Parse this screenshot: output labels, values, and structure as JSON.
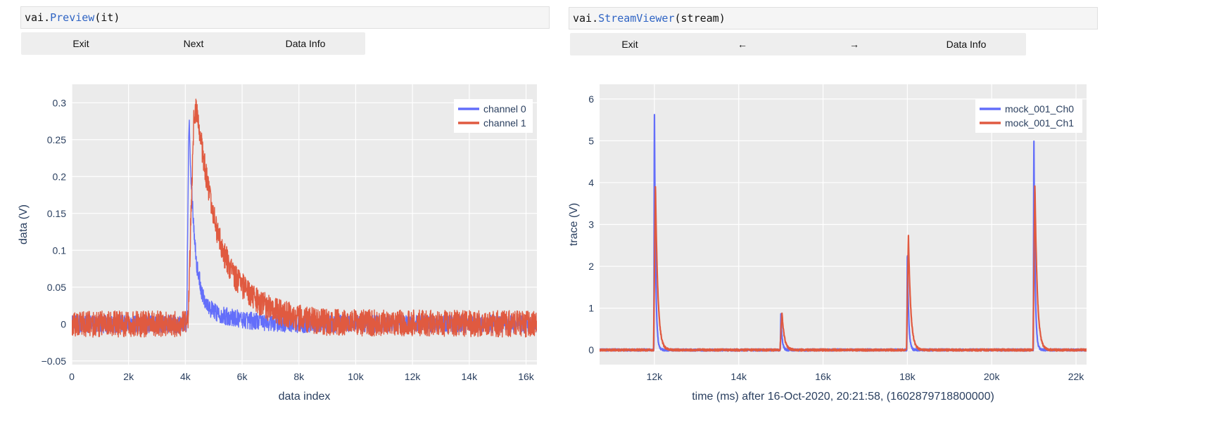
{
  "left_panel": {
    "code": {
      "prefix": "vai.",
      "fn": "Preview",
      "args": "(it)"
    },
    "buttons": [
      "Exit",
      "Next",
      "Data Info"
    ]
  },
  "right_panel": {
    "code": {
      "prefix": "vai.",
      "fn": "StreamViewer",
      "args": "(stream)"
    },
    "buttons": [
      "Exit",
      "←",
      "→",
      "Data Info"
    ]
  },
  "colors": {
    "channel0": "#636efa",
    "channel1": "#e05a40",
    "plot_bg": "#ebebeb",
    "grid": "#ffffff"
  },
  "chart_data": [
    {
      "type": "line",
      "xlabel": "data index",
      "ylabel": "data (V)",
      "xlim": [
        0,
        16384
      ],
      "ylim": [
        -0.055,
        0.325
      ],
      "x_ticks": [
        0,
        2000,
        4000,
        6000,
        8000,
        10000,
        12000,
        14000,
        16000
      ],
      "x_tick_labels": [
        "0",
        "2k",
        "4k",
        "6k",
        "8k",
        "10k",
        "12k",
        "14k",
        "16k"
      ],
      "y_ticks": [
        -0.05,
        0,
        0.05,
        0.1,
        0.15,
        0.2,
        0.25,
        0.3
      ],
      "y_tick_labels": [
        "−0.05",
        "0",
        "0.05",
        "0.1",
        "0.15",
        "0.2",
        "0.25",
        "0.3"
      ],
      "legend": "top-right",
      "series": [
        {
          "name": "channel 0",
          "x": [
            0,
            4050,
            4100,
            4130,
            4200,
            4300,
            4400,
            4600,
            4900,
            5300,
            6000,
            7000,
            8000,
            16384
          ],
          "values": [
            0,
            0,
            0.2,
            0.285,
            0.2,
            0.13,
            0.08,
            0.04,
            0.02,
            0.012,
            0.006,
            0.002,
            0,
            0
          ]
        },
        {
          "name": "channel 1",
          "x": [
            0,
            4100,
            4200,
            4300,
            4400,
            4600,
            4900,
            5300,
            5800,
            6400,
            7000,
            8000,
            9000,
            16384
          ],
          "values": [
            0,
            0,
            0.15,
            0.28,
            0.29,
            0.235,
            0.16,
            0.1,
            0.06,
            0.035,
            0.02,
            0.008,
            0.002,
            0
          ]
        }
      ]
    },
    {
      "type": "line",
      "xlabel": "time (ms) after 16-Oct-2020, 20:21:58, (1602879718800000)",
      "ylabel": "trace (V)",
      "xlim": [
        10700,
        22250
      ],
      "ylim": [
        -0.35,
        6.35
      ],
      "x_ticks": [
        12000,
        14000,
        16000,
        18000,
        20000,
        22000
      ],
      "x_tick_labels": [
        "12k",
        "14k",
        "16k",
        "18k",
        "20k",
        "22k"
      ],
      "y_ticks": [
        0,
        1,
        2,
        3,
        4,
        5,
        6
      ],
      "y_tick_labels": [
        "0",
        "1",
        "2",
        "3",
        "4",
        "5",
        "6"
      ],
      "legend": "top-right",
      "series": [
        {
          "name": "mock_001_Ch0",
          "pulses": [
            {
              "x": 12000,
              "peak": 5.98
            },
            {
              "x": 15000,
              "peak": 0.85
            },
            {
              "x": 18000,
              "peak": 2.5
            },
            {
              "x": 21000,
              "peak": 5.3
            }
          ]
        },
        {
          "name": "mock_001_Ch1",
          "pulses": [
            {
              "x": 12000,
              "peak": 4.0
            },
            {
              "x": 15000,
              "peak": 0.92
            },
            {
              "x": 18000,
              "peak": 2.75
            },
            {
              "x": 21000,
              "peak": 4.0
            }
          ]
        }
      ]
    }
  ]
}
